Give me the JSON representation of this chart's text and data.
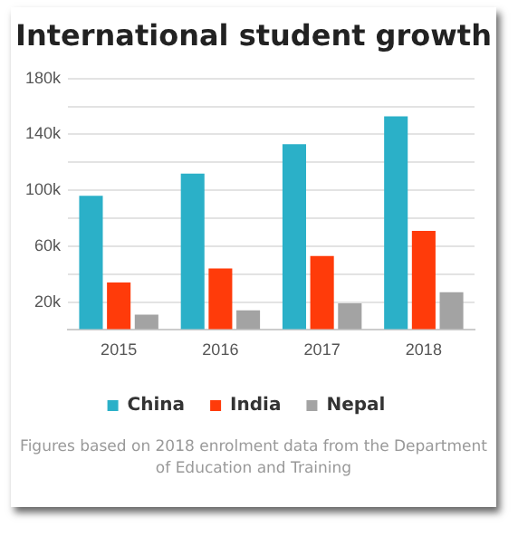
{
  "chart_data": {
    "type": "bar",
    "title": "International student growth",
    "categories": [
      "2015",
      "2016",
      "2017",
      "2018"
    ],
    "series": [
      {
        "name": "China",
        "color": "#2bb0c8",
        "values": [
          96000,
          112000,
          133000,
          153000
        ]
      },
      {
        "name": "India",
        "color": "#ff3b0a",
        "values": [
          34000,
          44000,
          53000,
          71000
        ]
      },
      {
        "name": "Nepal",
        "color": "#a3a3a3",
        "values": [
          11000,
          14000,
          19000,
          27000
        ]
      }
    ],
    "ylim": [
      0,
      180000
    ],
    "yticks": [
      {
        "value": 0,
        "label": null
      },
      {
        "value": 20000,
        "label": "20k"
      },
      {
        "value": 40000,
        "label": null
      },
      {
        "value": 60000,
        "label": "60k"
      },
      {
        "value": 80000,
        "label": null
      },
      {
        "value": 100000,
        "label": "100k"
      },
      {
        "value": 120000,
        "label": null
      },
      {
        "value": 140000,
        "label": "140k"
      },
      {
        "value": 160000,
        "label": null
      },
      {
        "value": 180000,
        "label": "180k"
      }
    ],
    "grid": "y",
    "legend": "bottom",
    "annotations": [
      "Figures based on 2018 enrolment data from the Department of Education and Training"
    ]
  }
}
